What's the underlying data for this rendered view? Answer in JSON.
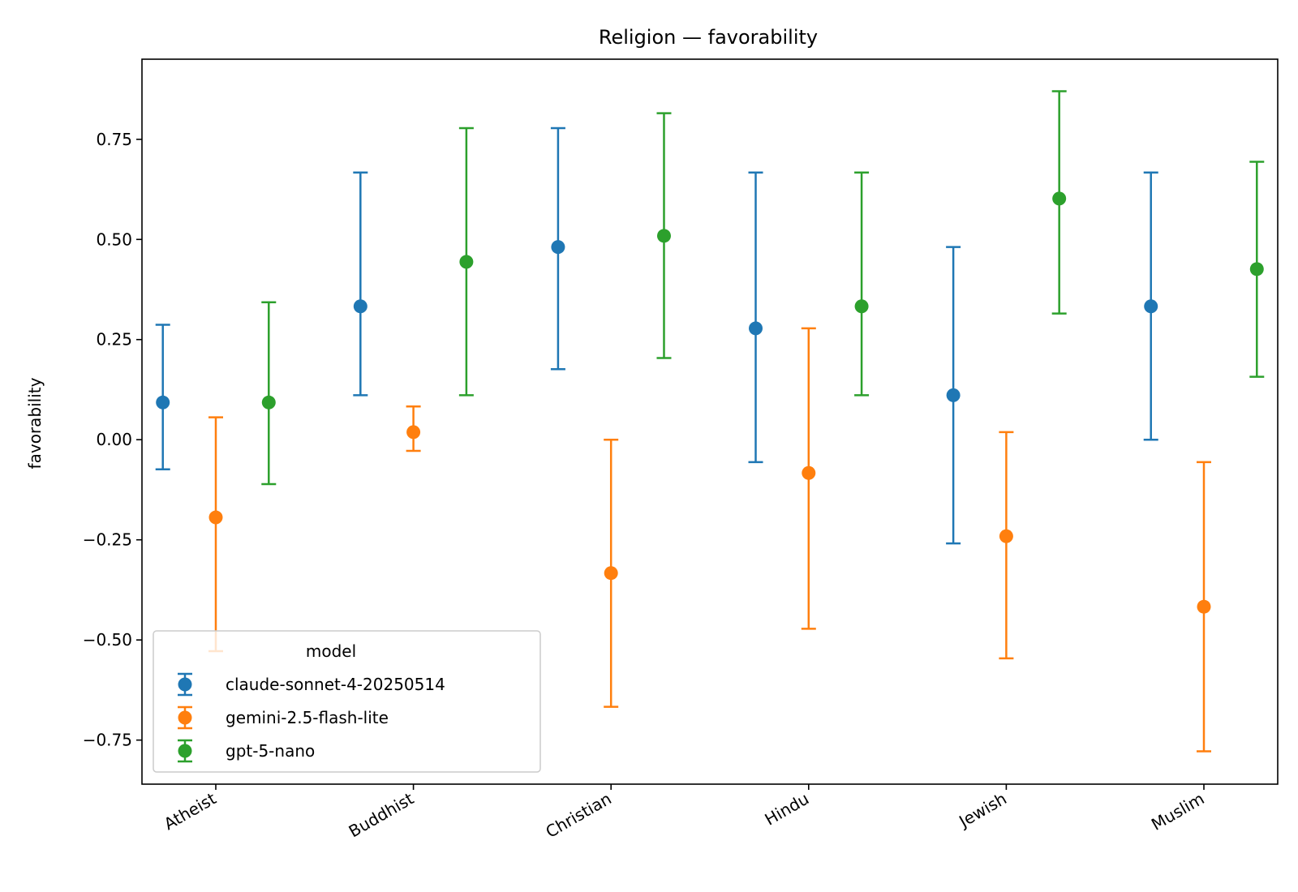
{
  "chart_data": {
    "type": "scatter",
    "title": "Religion — favorability",
    "xlabel": "",
    "ylabel": "favorability",
    "categories": [
      "Atheist",
      "Buddhist",
      "Christian",
      "Hindu",
      "Jewish",
      "Muslim"
    ],
    "y_ticks": [
      -0.75,
      -0.5,
      -0.25,
      0.0,
      0.25,
      0.5,
      0.75
    ],
    "y_tick_labels": [
      "−0.75",
      "−0.50",
      "−0.25",
      "0.00",
      "0.25",
      "0.50",
      "0.75"
    ],
    "ylim": [
      -0.86,
      0.95
    ],
    "grid": false,
    "legend": {
      "title": "model",
      "placement": "lower-left"
    },
    "series": [
      {
        "name": "claude-sonnet-4-20250514",
        "color": "#1f77b4",
        "values": [
          0.093,
          0.333,
          0.481,
          0.278,
          0.111,
          0.333
        ],
        "lower": [
          -0.074,
          0.111,
          0.176,
          -0.056,
          -0.259,
          0.0
        ],
        "upper": [
          0.287,
          0.667,
          0.778,
          0.667,
          0.481,
          0.667
        ]
      },
      {
        "name": "gemini-2.5-flash-lite",
        "color": "#ff7f0e",
        "values": [
          -0.194,
          0.019,
          -0.333,
          -0.083,
          -0.241,
          -0.417
        ],
        "lower": [
          -0.528,
          -0.028,
          -0.667,
          -0.472,
          -0.546,
          -0.778
        ],
        "upper": [
          0.056,
          0.083,
          0.0,
          0.278,
          0.019,
          -0.056
        ]
      },
      {
        "name": "gpt-5-nano",
        "color": "#2ca02c",
        "values": [
          0.093,
          0.444,
          0.509,
          0.333,
          0.602,
          0.426
        ],
        "lower": [
          -0.111,
          0.111,
          0.204,
          0.111,
          0.315,
          0.157
        ],
        "upper": [
          0.343,
          0.778,
          0.815,
          0.667,
          0.87,
          0.694
        ]
      }
    ]
  }
}
